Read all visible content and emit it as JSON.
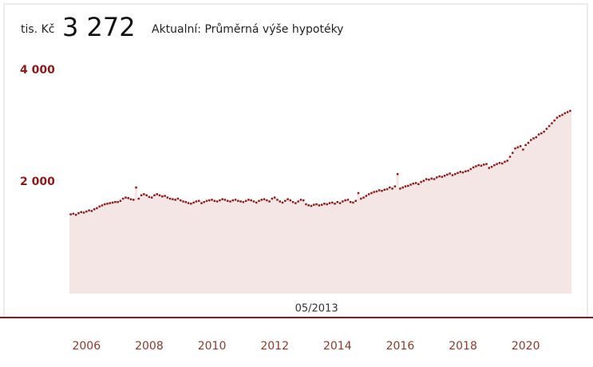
{
  "chart_data": {
    "type": "step-area",
    "unit": "tis. Kč",
    "current_value": 3272,
    "current_label": "3 272",
    "subtitle": "Aktualní: Průměrná výše hypotéky",
    "highlight": "05/2013",
    "color": "#8b1a1a",
    "fill": "#f5e6e6",
    "categories": [
      "07/2005",
      "08/2005",
      "09/2005",
      "10/2005",
      "11/2005",
      "12/2005",
      "01/2006",
      "02/2006",
      "03/2006",
      "04/2006",
      "05/2006",
      "06/2006",
      "07/2006",
      "08/2006",
      "09/2006",
      "10/2006",
      "11/2006",
      "12/2006",
      "01/2007",
      "02/2007",
      "03/2007",
      "04/2007",
      "05/2007",
      "06/2007",
      "07/2007",
      "08/2007",
      "09/2007",
      "10/2007",
      "11/2007",
      "12/2007",
      "01/2008",
      "02/2008",
      "03/2008",
      "04/2008",
      "05/2008",
      "06/2008",
      "07/2008",
      "08/2008",
      "09/2008",
      "10/2008",
      "11/2008",
      "12/2008",
      "01/2009",
      "02/2009",
      "03/2009",
      "04/2009",
      "05/2009",
      "06/2009",
      "07/2009",
      "08/2009",
      "09/2009",
      "10/2009",
      "11/2009",
      "12/2009",
      "01/2010",
      "02/2010",
      "03/2010",
      "04/2010",
      "05/2010",
      "06/2010",
      "07/2010",
      "08/2010",
      "09/2010",
      "10/2010",
      "11/2010",
      "12/2010",
      "01/2011",
      "02/2011",
      "03/2011",
      "04/2011",
      "05/2011",
      "06/2011",
      "07/2011",
      "08/2011",
      "09/2011",
      "10/2011",
      "11/2011",
      "12/2011",
      "01/2012",
      "02/2012",
      "03/2012",
      "04/2012",
      "05/2012",
      "06/2012",
      "07/2012",
      "08/2012",
      "09/2012",
      "10/2012",
      "11/2012",
      "12/2012",
      "01/2013",
      "02/2013",
      "03/2013",
      "04/2013",
      "05/2013",
      "06/2013",
      "07/2013",
      "08/2013",
      "09/2013",
      "10/2013",
      "11/2013",
      "12/2013",
      "01/2014",
      "02/2014",
      "03/2014",
      "04/2014",
      "05/2014",
      "06/2014",
      "07/2014",
      "08/2014",
      "09/2014",
      "10/2014",
      "11/2014",
      "12/2014",
      "01/2015",
      "02/2015",
      "03/2015",
      "04/2015",
      "05/2015",
      "06/2015",
      "07/2015",
      "08/2015",
      "09/2015",
      "10/2015",
      "11/2015",
      "12/2015",
      "01/2016",
      "02/2016",
      "03/2016",
      "04/2016",
      "05/2016",
      "06/2016",
      "07/2016",
      "08/2016",
      "09/2016",
      "10/2016",
      "11/2016",
      "12/2016",
      "01/2017",
      "02/2017",
      "03/2017",
      "04/2017",
      "05/2017",
      "06/2017",
      "07/2017",
      "08/2017",
      "09/2017",
      "10/2017",
      "11/2017",
      "12/2017",
      "01/2018",
      "02/2018",
      "03/2018",
      "04/2018",
      "05/2018",
      "06/2018",
      "07/2018",
      "08/2018",
      "09/2018",
      "10/2018",
      "11/2018",
      "12/2018",
      "01/2019",
      "02/2019",
      "03/2019",
      "04/2019",
      "05/2019",
      "06/2019",
      "07/2019",
      "08/2019",
      "09/2019",
      "10/2019",
      "11/2019",
      "12/2019",
      "01/2020",
      "02/2020",
      "03/2020",
      "04/2020",
      "05/2020",
      "06/2020",
      "07/2020",
      "08/2020",
      "09/2020",
      "10/2020",
      "11/2020",
      "12/2020",
      "01/2021",
      "02/2021",
      "03/2021",
      "04/2021",
      "05/2021",
      "06/2021"
    ],
    "values": [
      1420,
      1430,
      1410,
      1440,
      1460,
      1450,
      1470,
      1490,
      1480,
      1510,
      1530,
      1560,
      1580,
      1600,
      1610,
      1620,
      1630,
      1640,
      1640,
      1660,
      1700,
      1720,
      1710,
      1690,
      1680,
      1900,
      1700,
      1760,
      1780,
      1760,
      1730,
      1720,
      1760,
      1780,
      1760,
      1740,
      1750,
      1720,
      1700,
      1690,
      1680,
      1700,
      1670,
      1650,
      1640,
      1620,
      1610,
      1630,
      1650,
      1660,
      1620,
      1640,
      1660,
      1670,
      1680,
      1660,
      1650,
      1670,
      1690,
      1680,
      1660,
      1650,
      1670,
      1680,
      1660,
      1650,
      1640,
      1660,
      1680,
      1670,
      1650,
      1630,
      1660,
      1680,
      1690,
      1670,
      1650,
      1700,
      1720,
      1680,
      1650,
      1630,
      1660,
      1690,
      1670,
      1640,
      1620,
      1650,
      1680,
      1670,
      1600,
      1580,
      1570,
      1590,
      1600,
      1580,
      1590,
      1610,
      1600,
      1620,
      1630,
      1610,
      1640,
      1620,
      1650,
      1670,
      1680,
      1640,
      1630,
      1660,
      1800,
      1700,
      1720,
      1750,
      1780,
      1800,
      1820,
      1830,
      1850,
      1840,
      1860,
      1870,
      1900,
      1880,
      1920,
      2140,
      1880,
      1900,
      1920,
      1930,
      1950,
      1970,
      1980,
      1960,
      2000,
      2020,
      2050,
      2040,
      2060,
      2050,
      2080,
      2100,
      2090,
      2110,
      2130,
      2150,
      2120,
      2140,
      2160,
      2180,
      2170,
      2190,
      2200,
      2230,
      2260,
      2280,
      2300,
      2290,
      2310,
      2320,
      2250,
      2270,
      2300,
      2320,
      2340,
      2330,
      2360,
      2380,
      2450,
      2520,
      2600,
      2620,
      2640,
      2580,
      2660,
      2700,
      2750,
      2780,
      2800,
      2850,
      2870,
      2900,
      2950,
      3000,
      3050,
      3100,
      3150,
      3180,
      3200,
      3230,
      3250,
      3272
    ],
    "ylim": [
      0,
      4000
    ],
    "yticks": [
      {
        "value": 2000,
        "label": "2 000"
      },
      {
        "value": 4000,
        "label": "4 000"
      }
    ],
    "xticks": [
      2006,
      2008,
      2010,
      2012,
      2014,
      2016,
      2018,
      2020
    ]
  }
}
